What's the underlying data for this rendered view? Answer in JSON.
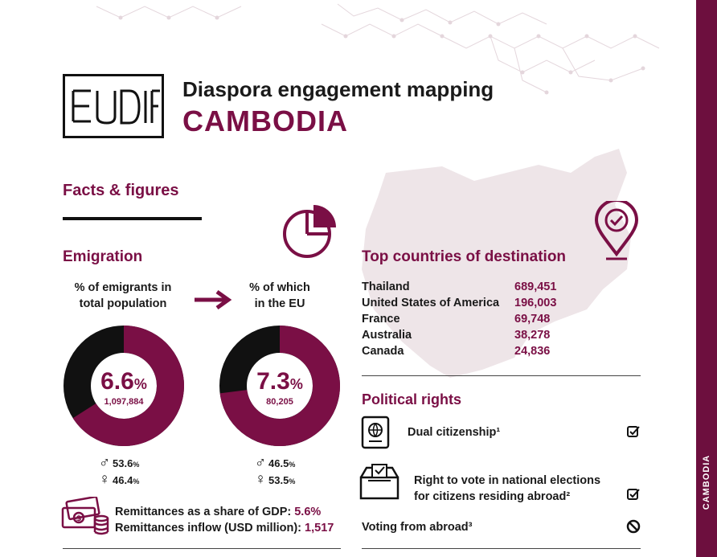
{
  "header": {
    "logo_text": "EUDIF",
    "subtitle": "Diaspora engagement mapping",
    "country": "CAMBODIA"
  },
  "sidebar": {
    "label": "CAMBODIA"
  },
  "facts": {
    "title": "Facts & figures"
  },
  "emigration": {
    "title": "Emigration",
    "total": {
      "label_line1": "% of emigrants in",
      "label_line2": "total population",
      "percent": "6.6",
      "unit": "%",
      "count": "1,097,884",
      "share": 0.66,
      "male": "53.6",
      "female": "46.4"
    },
    "eu": {
      "label_line1": "% of which",
      "label_line2": "in the EU",
      "percent": "7.3",
      "unit": "%",
      "count": "80,205",
      "share": 0.73,
      "male": "46.5",
      "female": "53.5"
    },
    "remittances": {
      "gdp_label": "Remittances as a share of GDP:",
      "gdp_value": "5.6%",
      "inflow_label": "Remittances inflow (USD million):",
      "inflow_value": "1,517"
    }
  },
  "destinations": {
    "title": "Top countries of destination",
    "rows": [
      {
        "country": "Thailand",
        "value": "689,451"
      },
      {
        "country": "United States of America",
        "value": "196,003"
      },
      {
        "country": "France",
        "value": "69,748"
      },
      {
        "country": "Australia",
        "value": "38,278"
      },
      {
        "country": "Canada",
        "value": "24,836"
      }
    ]
  },
  "political": {
    "title": "Political rights",
    "dual": "Dual citizenship¹",
    "vote_line1": "Right to vote in national elections",
    "vote_line2": "for citizens residing abroad²",
    "abroad": "Voting from abroad³"
  },
  "colors": {
    "accent": "#7a0f45",
    "dark": "#111111",
    "map": "#eee5e8"
  },
  "icons": [
    "pie-chart-icon",
    "arrow-right-icon",
    "map-pin-check-icon",
    "passport-icon",
    "ballot-box-icon",
    "checkbox-checked-icon",
    "prohibited-icon",
    "banknote-coins-icon",
    "male-icon",
    "female-icon"
  ]
}
